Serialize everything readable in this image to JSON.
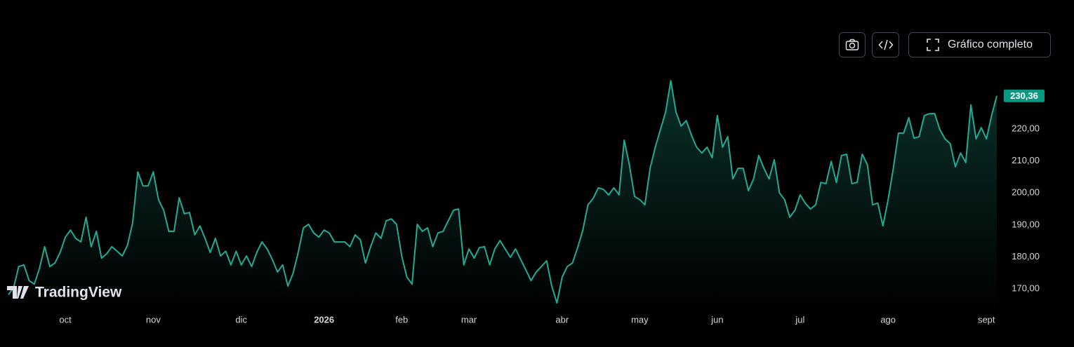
{
  "chart_data": {
    "type": "area",
    "brand": "TradingView",
    "buttons": {
      "fullscreen": "Gráfico completo"
    },
    "series": [
      {
        "color": "#22ab94",
        "values": [
          168.2,
          170.4,
          177.0,
          177.5,
          172.6,
          171.5,
          176.4,
          183.2,
          177.0,
          178.1,
          181.4,
          186.2,
          188.4,
          185.8,
          184.7,
          192.4,
          183.2,
          188.0,
          179.6,
          181.0,
          183.2,
          181.8,
          180.3,
          183.6,
          190.6,
          206.6,
          202.2,
          202.2,
          206.6,
          197.9,
          194.6,
          188.0,
          188.0,
          198.5,
          193.5,
          193.9,
          186.9,
          189.7,
          185.8,
          181.4,
          185.8,
          180.3,
          181.8,
          177.5,
          181.8,
          177.5,
          180.3,
          177.0,
          181.4,
          184.7,
          182.5,
          179.2,
          175.3,
          177.5,
          170.9,
          174.8,
          181.4,
          189.1,
          190.2,
          187.5,
          186.2,
          188.4,
          187.5,
          184.7,
          184.7,
          184.7,
          183.2,
          186.9,
          185.4,
          178.1,
          183.2,
          187.5,
          185.8,
          191.3,
          191.9,
          190.2,
          180.3,
          173.7,
          171.5,
          190.2,
          188.0,
          189.1,
          183.2,
          187.5,
          188.0,
          191.3,
          194.6,
          195.0,
          177.5,
          182.5,
          179.6,
          182.9,
          183.2,
          177.5,
          182.5,
          185.1,
          182.5,
          179.9,
          182.5,
          179.2,
          175.9,
          172.6,
          175.3,
          177.0,
          178.8,
          170.9,
          165.6,
          173.7,
          177.0,
          178.1,
          182.9,
          188.4,
          196.3,
          198.3,
          201.6,
          201.1,
          199.4,
          201.6,
          199.4,
          216.5,
          208.8,
          198.9,
          197.9,
          196.3,
          207.7,
          214.3,
          219.8,
          225.3,
          235.1,
          225.3,
          220.9,
          222.6,
          218.0,
          214.3,
          212.5,
          214.3,
          211.0,
          224.2,
          214.3,
          217.6,
          204.4,
          207.7,
          207.7,
          200.7,
          204.4,
          211.7,
          207.7,
          204.4,
          210.4,
          200.0,
          197.9,
          192.4,
          194.6,
          199.4,
          196.8,
          195.0,
          196.3,
          203.3,
          202.9,
          209.9,
          203.3,
          211.7,
          212.1,
          202.9,
          203.3,
          212.1,
          208.8,
          196.3,
          196.8,
          189.7,
          197.9,
          207.7,
          218.7,
          218.7,
          223.5,
          217.1,
          217.6,
          224.2,
          224.8,
          224.8,
          219.8,
          216.9,
          215.4,
          208.2,
          212.5,
          209.5,
          227.5,
          216.9,
          220.4,
          216.9,
          224.2,
          230.36
        ]
      }
    ],
    "price_label": {
      "value": 230.36,
      "label": "230,36"
    },
    "price_label_color": "#089981",
    "ylim": [
      162.8,
      238.4
    ],
    "yticks": [
      {
        "value": 170,
        "label": "170,00"
      },
      {
        "value": 180,
        "label": "180,00"
      },
      {
        "value": 190,
        "label": "190,00"
      },
      {
        "value": 200,
        "label": "200,00"
      },
      {
        "value": 210,
        "label": "210,00"
      },
      {
        "value": 220,
        "label": "220,00"
      }
    ],
    "xticks": [
      {
        "value": 11,
        "label": "oct"
      },
      {
        "value": 28,
        "label": "nov"
      },
      {
        "value": 45,
        "label": "dic"
      },
      {
        "value": 61,
        "label": "2026"
      },
      {
        "value": 76,
        "label": "feb"
      },
      {
        "value": 89,
        "label": "mar"
      },
      {
        "value": 107,
        "label": "abr"
      },
      {
        "value": 122,
        "label": "may"
      },
      {
        "value": 137,
        "label": "jun"
      },
      {
        "value": 153,
        "label": "jul"
      },
      {
        "value": 170,
        "label": "ago"
      },
      {
        "value": 189,
        "label": "sept"
      }
    ],
    "grid": false
  }
}
